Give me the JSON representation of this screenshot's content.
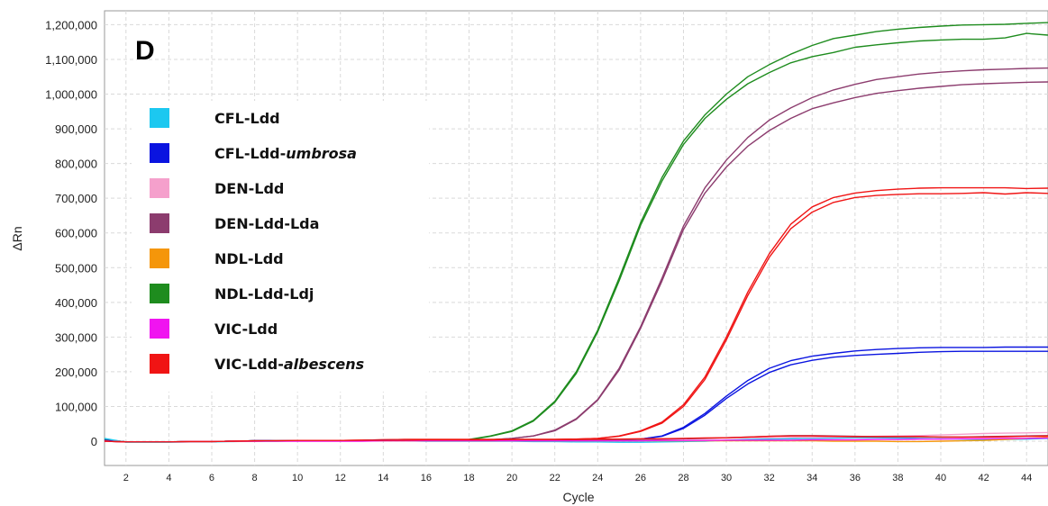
{
  "panel_letter": "D",
  "chart_data": {
    "type": "line",
    "xlabel": "Cycle",
    "ylabel": "ΔRn",
    "xlim": [
      1,
      45
    ],
    "ylim": [
      -70000,
      1240000
    ],
    "grid": true,
    "legend_position": "top-left",
    "yticks": [
      0,
      100000,
      200000,
      300000,
      400000,
      500000,
      600000,
      700000,
      800000,
      900000,
      1000000,
      1100000,
      1200000
    ],
    "ytick_labels": [
      "0",
      "100,000",
      "200,000",
      "300,000",
      "400,000",
      "500,000",
      "600,000",
      "700,000",
      "800,000",
      "900,000",
      "1,000,000",
      "1,100,000",
      "1,200,000"
    ],
    "xticks": [
      2,
      4,
      6,
      8,
      10,
      12,
      14,
      16,
      18,
      20,
      22,
      24,
      26,
      28,
      30,
      32,
      34,
      36,
      38,
      40,
      42,
      44
    ],
    "xtick_labels": [
      "2",
      "4",
      "6",
      "8",
      "10",
      "12",
      "14",
      "16",
      "18",
      "20",
      "22",
      "24",
      "26",
      "28",
      "30",
      "32",
      "34",
      "36",
      "38",
      "40",
      "42",
      "44"
    ],
    "legend": [
      {
        "name": "CFL-Ldd",
        "suffix": "",
        "color": "#1cc8f0"
      },
      {
        "name": "CFL-Ldd-",
        "suffix": "umbrosa",
        "color": "#0a14e0"
      },
      {
        "name": "DEN-Ldd",
        "suffix": "",
        "color": "#f5a0cc"
      },
      {
        "name": "DEN-Ldd-Lda",
        "suffix": "",
        "color": "#8c3c6e"
      },
      {
        "name": "NDL-Ldd",
        "suffix": "",
        "color": "#f5960a"
      },
      {
        "name": "NDL-Ldd-Ldj",
        "suffix": "",
        "color": "#1e8c1e"
      },
      {
        "name": "VIC-Ldd",
        "suffix": "",
        "color": "#f014f0"
      },
      {
        "name": "VIC-Ldd-",
        "suffix": "albescens",
        "color": "#f01414"
      }
    ],
    "x": [
      1,
      2,
      3,
      4,
      5,
      6,
      7,
      8,
      9,
      10,
      11,
      12,
      13,
      14,
      15,
      16,
      17,
      18,
      19,
      20,
      21,
      22,
      23,
      24,
      25,
      26,
      27,
      28,
      29,
      30,
      31,
      32,
      33,
      34,
      35,
      36,
      37,
      38,
      39,
      40,
      41,
      42,
      43,
      44,
      45
    ],
    "series": [
      {
        "color": "#1e8c1e",
        "values": [
          5000,
          -2000,
          -2000,
          -2000,
          -1000,
          -1000,
          0,
          1000,
          1000,
          2000,
          2000,
          2000,
          2000,
          3000,
          3000,
          3000,
          3000,
          5000,
          15000,
          30000,
          60000,
          115000,
          200000,
          320000,
          470000,
          630000,
          760000,
          865000,
          940000,
          1000000,
          1050000,
          1085000,
          1115000,
          1140000,
          1160000,
          1170000,
          1180000,
          1187000,
          1192000,
          1196000,
          1199000,
          1200000,
          1201000,
          1204000,
          1206000
        ]
      },
      {
        "color": "#1e8c1e",
        "values": [
          5000,
          -2000,
          -2000,
          -2000,
          -1000,
          -1000,
          0,
          1000,
          1000,
          2000,
          2000,
          2000,
          2000,
          3000,
          3000,
          3000,
          3000,
          4000,
          14000,
          28000,
          58000,
          112000,
          195000,
          315000,
          462000,
          622000,
          750000,
          855000,
          930000,
          985000,
          1030000,
          1062000,
          1090000,
          1108000,
          1120000,
          1135000,
          1142000,
          1148000,
          1153000,
          1156000,
          1158000,
          1158000,
          1162000,
          1175000,
          1170000
        ]
      },
      {
        "color": "#8c3c6e",
        "values": [
          3000,
          -2000,
          -2000,
          -2000,
          -1000,
          -1000,
          0,
          1000,
          1000,
          2000,
          2000,
          2000,
          2000,
          3000,
          3000,
          3000,
          3000,
          3000,
          4000,
          8000,
          15000,
          32000,
          65000,
          120000,
          210000,
          330000,
          470000,
          620000,
          730000,
          810000,
          875000,
          925000,
          960000,
          990000,
          1012000,
          1028000,
          1042000,
          1050000,
          1058000,
          1063000,
          1067000,
          1070000,
          1072000,
          1074000,
          1075000
        ]
      },
      {
        "color": "#8c3c6e",
        "values": [
          3000,
          -2000,
          -2000,
          -2000,
          -1000,
          -1000,
          0,
          1000,
          1000,
          2000,
          2000,
          2000,
          2000,
          3000,
          3000,
          3000,
          3000,
          3000,
          4000,
          8000,
          15000,
          30000,
          63000,
          118000,
          205000,
          325000,
          462000,
          610000,
          715000,
          790000,
          850000,
          895000,
          930000,
          958000,
          975000,
          990000,
          1002000,
          1010000,
          1017000,
          1022000,
          1027000,
          1030000,
          1032000,
          1034000,
          1035000
        ]
      },
      {
        "color": "#f01414",
        "values": [
          2000,
          -2000,
          -2000,
          -2000,
          -1000,
          -1000,
          0,
          1000,
          1000,
          2000,
          2000,
          2000,
          3000,
          4000,
          5000,
          5000,
          5000,
          5000,
          5000,
          5000,
          5000,
          5000,
          6000,
          8000,
          15000,
          30000,
          55000,
          105000,
          185000,
          300000,
          430000,
          540000,
          625000,
          675000,
          702000,
          715000,
          722000,
          726000,
          729000,
          730000,
          730000,
          730000,
          730000,
          728000,
          729000
        ]
      },
      {
        "color": "#f01414",
        "values": [
          2000,
          -2000,
          -2000,
          -2000,
          -1000,
          -1000,
          0,
          1000,
          1000,
          2000,
          2000,
          2000,
          3000,
          4000,
          5000,
          5000,
          5000,
          5000,
          5000,
          5000,
          5000,
          5000,
          6000,
          8000,
          14000,
          28000,
          52000,
          100000,
          178000,
          292000,
          420000,
          530000,
          612000,
          660000,
          688000,
          702000,
          708000,
          711000,
          713000,
          713000,
          714000,
          716000,
          712000,
          716000,
          714000
        ]
      },
      {
        "color": "#0a14e0",
        "values": [
          2000,
          -2000,
          -2000,
          -2000,
          -1000,
          -1000,
          0,
          1000,
          1000,
          2000,
          2000,
          2000,
          2000,
          3000,
          3000,
          3000,
          3000,
          3000,
          3000,
          3000,
          3000,
          3000,
          3000,
          3000,
          4000,
          6000,
          15000,
          40000,
          80000,
          130000,
          175000,
          210000,
          232000,
          245000,
          253000,
          260000,
          264000,
          267000,
          269000,
          270000,
          270000,
          270000,
          271000,
          271000,
          271000
        ]
      },
      {
        "color": "#0a14e0",
        "values": [
          2000,
          -2000,
          -2000,
          -2000,
          -1000,
          -1000,
          0,
          1000,
          1000,
          2000,
          2000,
          2000,
          2000,
          3000,
          3000,
          3000,
          3000,
          3000,
          3000,
          3000,
          3000,
          3000,
          3000,
          3000,
          4000,
          6000,
          14000,
          37000,
          75000,
          123000,
          165000,
          198000,
          220000,
          233000,
          242000,
          247000,
          250000,
          253000,
          256000,
          258000,
          259000,
          259000,
          259000,
          259000,
          259000
        ]
      },
      {
        "color": "#1cc8f0",
        "values": [
          8000,
          -3000,
          -3000,
          -3000,
          -2000,
          -2000,
          -1000,
          0,
          0,
          1000,
          1000,
          1000,
          1000,
          1000,
          1000,
          0,
          0,
          0,
          0,
          0,
          -1000,
          -1000,
          -2000,
          -2000,
          -3000,
          -3000,
          -2000,
          -1000,
          0,
          3000,
          5000,
          6000,
          7000,
          8000,
          9000,
          10000,
          10000,
          9000,
          8000,
          7000,
          6000,
          5000,
          5000,
          6000,
          8000
        ]
      },
      {
        "color": "#f5a0cc",
        "values": [
          0,
          -2000,
          -2000,
          -2000,
          -1000,
          -1000,
          0,
          0,
          1000,
          1000,
          1000,
          2000,
          2000,
          2000,
          3000,
          3000,
          3000,
          3000,
          3000,
          3000,
          3000,
          4000,
          4000,
          5000,
          5000,
          6000,
          7000,
          8000,
          9000,
          9000,
          10000,
          10000,
          11000,
          11000,
          12000,
          13000,
          14000,
          15000,
          16000,
          18000,
          20000,
          22000,
          23000,
          24000,
          25000
        ]
      },
      {
        "color": "#8c3c6e",
        "values": [
          0,
          -2000,
          -2000,
          -2000,
          -1000,
          -1000,
          0,
          0,
          1000,
          1000,
          1000,
          2000,
          2000,
          2000,
          3000,
          3000,
          3000,
          3000,
          3000,
          3000,
          3000,
          3000,
          4000,
          4000,
          5000,
          5000,
          6000,
          7000,
          8000,
          10000,
          12000,
          14000,
          16000,
          16000,
          15000,
          14000,
          13000,
          13000,
          13000,
          12000,
          12000,
          13000,
          14000,
          15000,
          16000
        ]
      },
      {
        "color": "#f5960a",
        "values": [
          0,
          -2000,
          -2000,
          -2000,
          -1000,
          -1000,
          0,
          0,
          1000,
          1000,
          1000,
          1000,
          1000,
          1000,
          1000,
          1000,
          1000,
          1000,
          1000,
          1000,
          1000,
          1000,
          1000,
          1000,
          1000,
          1000,
          1000,
          1000,
          1000,
          1000,
          1000,
          1000,
          1000,
          1000,
          0,
          0,
          0,
          -1000,
          -1000,
          0,
          1000,
          2000,
          5000,
          8000,
          12000
        ]
      },
      {
        "color": "#f014f0",
        "values": [
          0,
          -2000,
          -2000,
          -2000,
          -1000,
          -1000,
          0,
          0,
          0,
          0,
          0,
          0,
          0,
          1000,
          1000,
          1000,
          1000,
          1000,
          1000,
          1000,
          1000,
          1000,
          1000,
          1000,
          1000,
          1000,
          2000,
          2000,
          2000,
          3000,
          3000,
          3000,
          3000,
          4000,
          4000,
          4000,
          5000,
          5000,
          6000,
          6000,
          7000,
          7000,
          8000,
          8000,
          9000
        ]
      },
      {
        "color": "#f01414",
        "values": [
          0,
          -2000,
          -2000,
          -2000,
          -1000,
          -1000,
          0,
          1000,
          1000,
          2000,
          2000,
          2000,
          3000,
          3000,
          3000,
          4000,
          4000,
          4000,
          4000,
          5000,
          5000,
          5000,
          5000,
          6000,
          6000,
          7000,
          7000,
          8000,
          9000,
          10000,
          12000,
          14000,
          15000,
          15000,
          14000,
          13000,
          13000,
          13000,
          13000,
          12000,
          12000,
          12000,
          13000,
          14000,
          15000
        ]
      }
    ]
  }
}
